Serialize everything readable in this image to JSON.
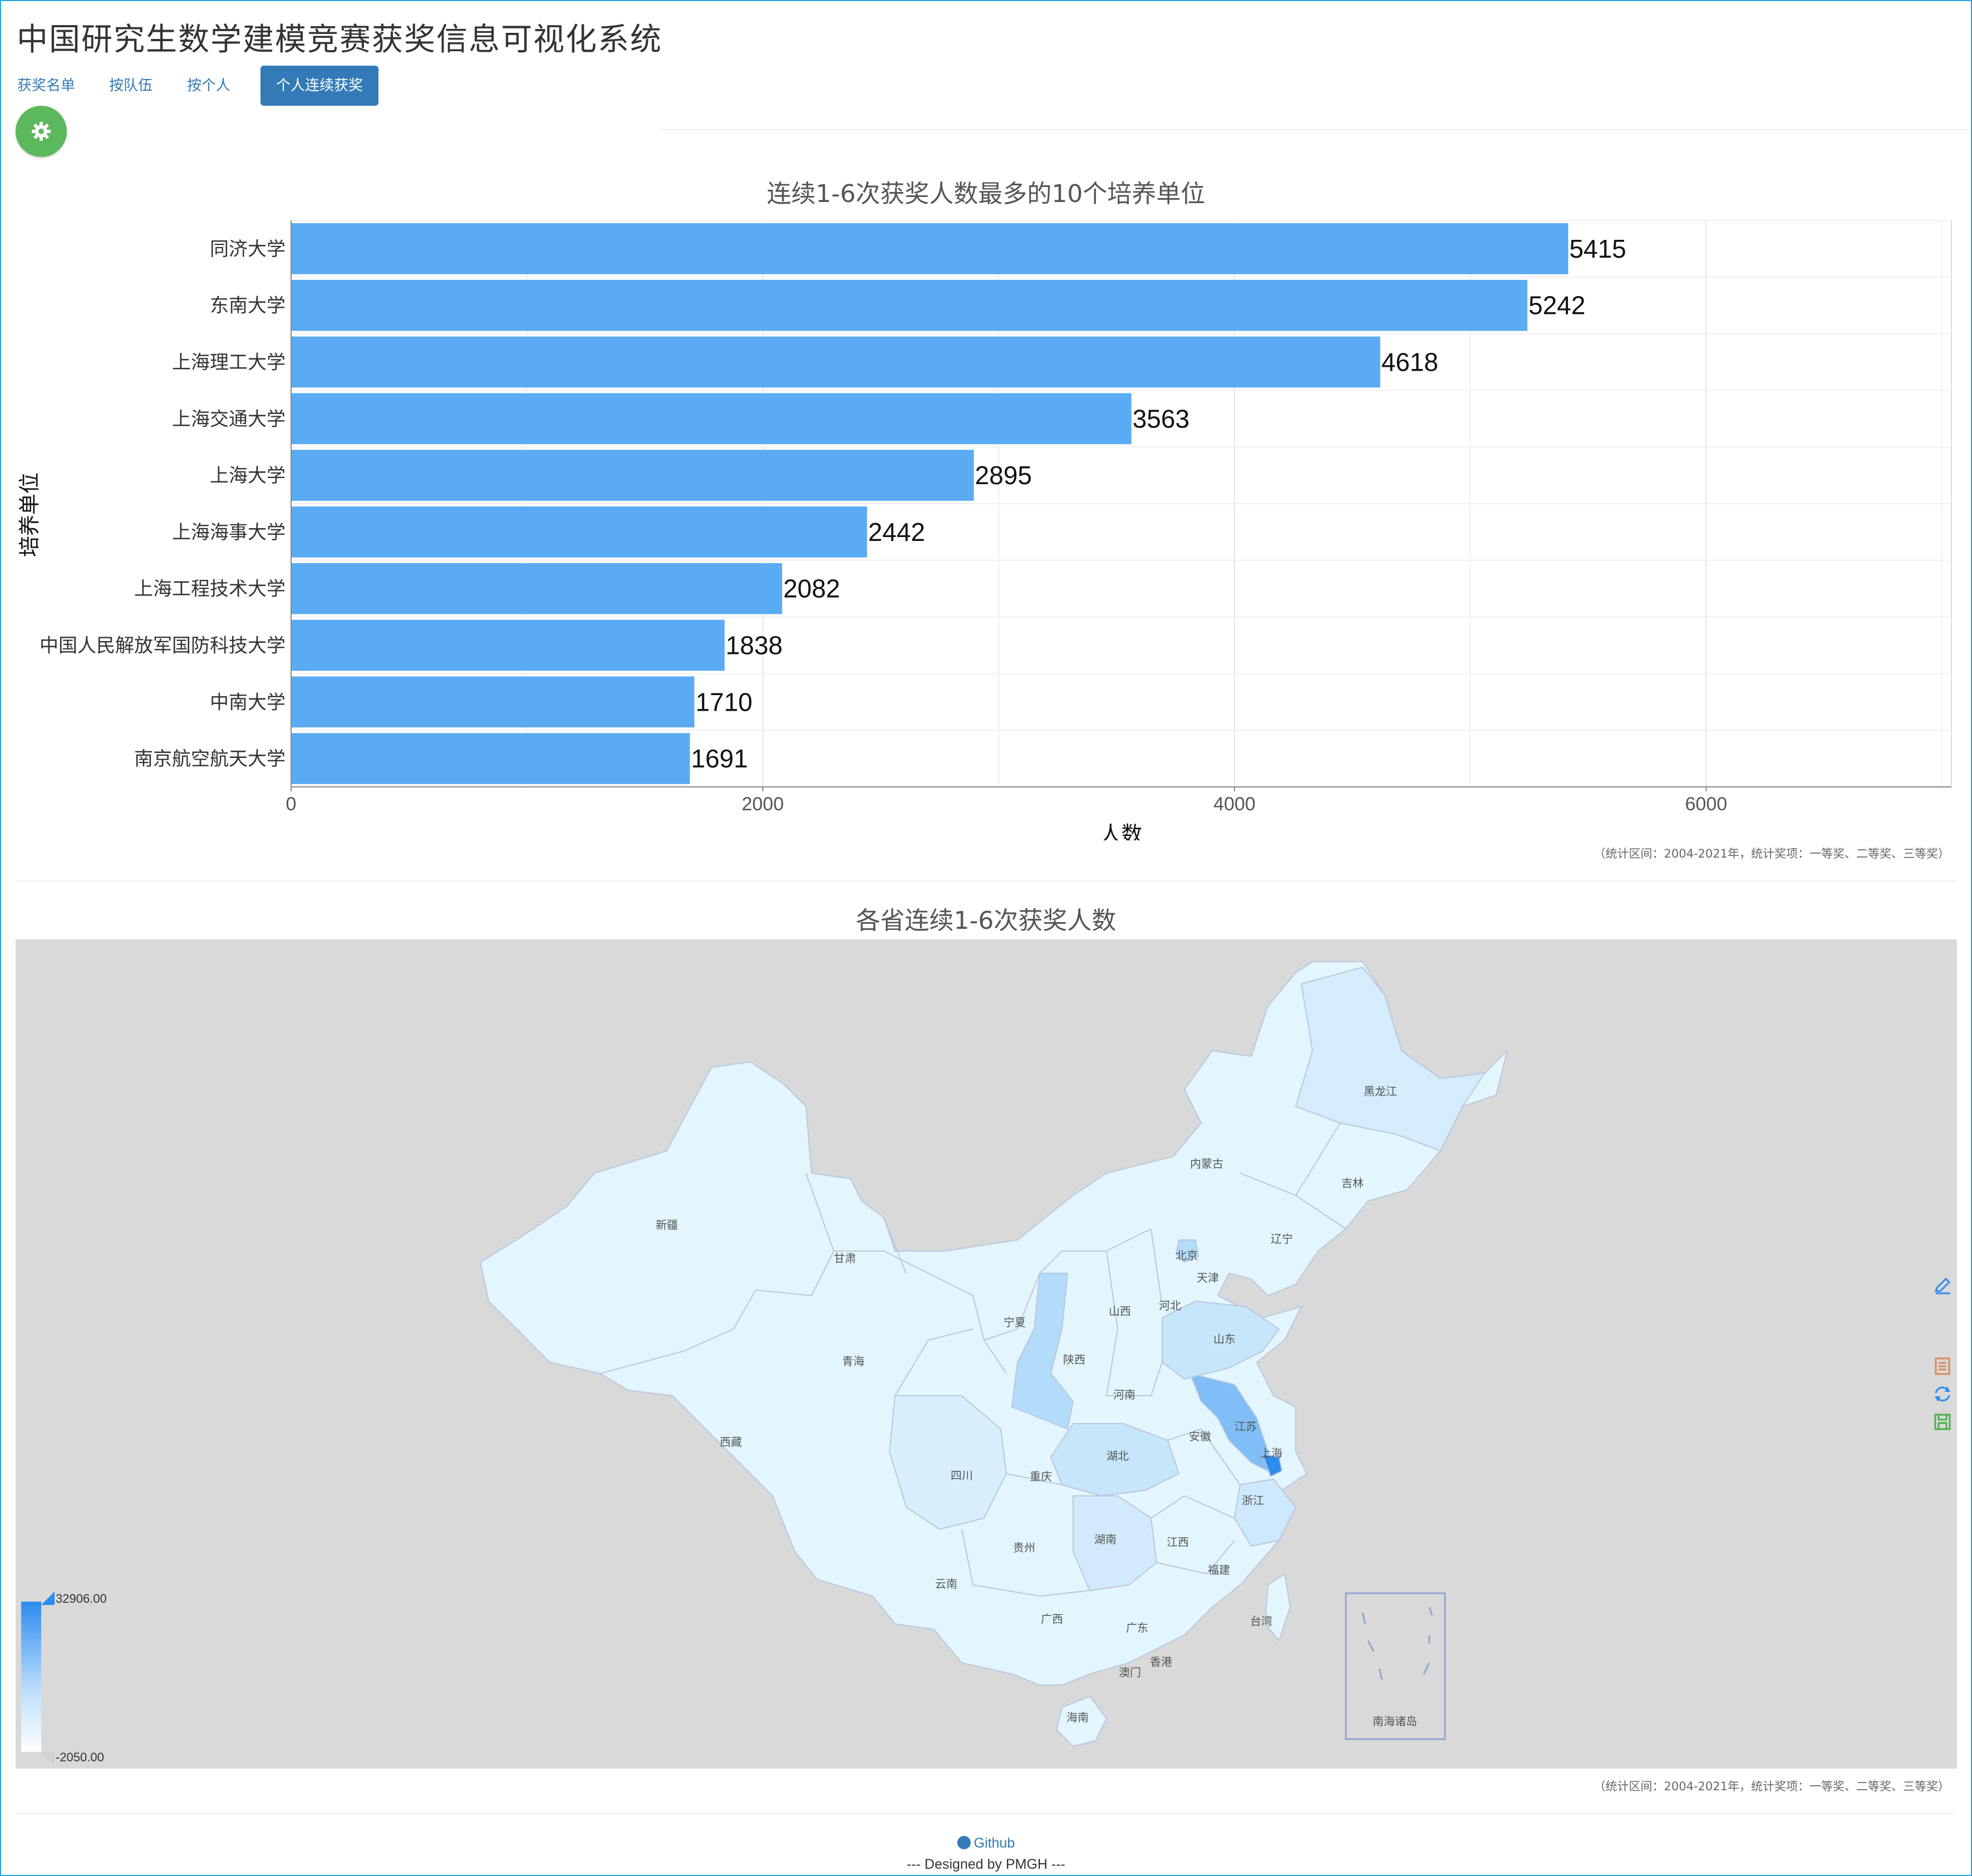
{
  "app": {
    "title": "中国研究生数学建模竞赛获奖信息可视化系统"
  },
  "nav": {
    "tabs": [
      {
        "label": "获奖名单",
        "active": false
      },
      {
        "label": "按队伍",
        "active": false
      },
      {
        "label": "按个人",
        "active": false
      },
      {
        "label": "个人连续获奖",
        "active": true
      }
    ],
    "settings_icon": "gear-icon"
  },
  "chart_data": [
    {
      "type": "bar",
      "orientation": "horizontal",
      "title": "连续1-6次获奖人数最多的10个培养单位",
      "xlabel": "人数",
      "ylabel": "培养单位",
      "categories": [
        "同济大学",
        "东南大学",
        "上海理工大学",
        "上海交通大学",
        "上海大学",
        "上海海事大学",
        "上海工程技术大学",
        "中国人民解放军国防科技大学",
        "中南大学",
        "南京航空航天大学"
      ],
      "values": [
        5415,
        5242,
        4618,
        3563,
        2895,
        2442,
        2082,
        1838,
        1710,
        1691
      ],
      "xlim": [
        0,
        7040
      ],
      "xticks": [
        0,
        2000,
        4000,
        6000
      ],
      "bar_color": "#5aabf3",
      "grid": true,
      "note": "（统计区间：2004-2021年，统计奖项：一等奖、二等奖、三等奖）"
    },
    {
      "type": "choropleth-map",
      "title": "各省连续1-6次获奖人数",
      "region_labels": [
        "新疆",
        "西藏",
        "青海",
        "甘肃",
        "内蒙古",
        "黑龙江",
        "吉林",
        "辽宁",
        "北京",
        "天津",
        "河北",
        "山西",
        "宁夏",
        "陕西",
        "山东",
        "河南",
        "江苏",
        "上海",
        "安徽",
        "湖北",
        "四川",
        "重庆",
        "浙江",
        "湖南",
        "江西",
        "贵州",
        "云南",
        "福建",
        "广西",
        "广东",
        "台湾",
        "香港",
        "澳门",
        "海南",
        "南海诸岛"
      ],
      "visual_map": {
        "max_label": "32906.00",
        "min_label": "-2050.00",
        "color_high": "#2d8cf0",
        "color_low": "#ffffff"
      },
      "note": "（统计区间：2004-2021年，统计奖项：一等奖、二等奖、三等奖）"
    }
  ],
  "toolbox": [
    "edit-icon",
    "data-view-icon",
    "restore-icon",
    "save-icon"
  ],
  "footer": {
    "github_label": "Github",
    "credit": "--- Designed by PMGH ---"
  }
}
